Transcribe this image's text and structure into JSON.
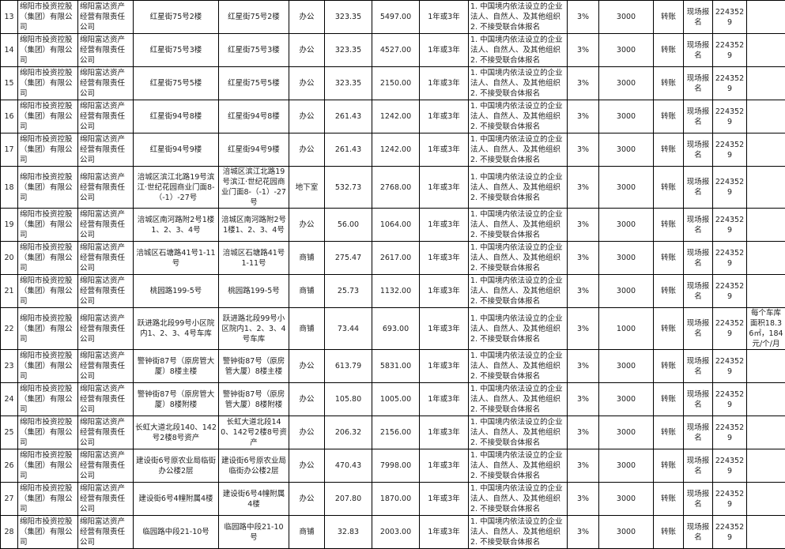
{
  "common": {
    "owner": "绵阳市投资控股（集团）有限公司",
    "operator": "绵阳富达资产经营有限责任公司",
    "term": "1年或3年",
    "requirement_1": "1. 中国境内依法设立的企业法人、自然人、及其他组织",
    "requirement_2": "2. 不接受联合体报名",
    "rate": "3%",
    "payment": "转账",
    "signup": "现场报名",
    "phone": "2243529"
  },
  "rows": [
    {
      "no": "13",
      "addr1": "红星街75号2楼",
      "addr2": "红星街75号2楼",
      "use": "办公",
      "area": "323.35",
      "price": "5497.00",
      "deposit": "3000",
      "note": ""
    },
    {
      "no": "14",
      "addr1": "红星街75号3楼",
      "addr2": "红星街75号3楼",
      "use": "办公",
      "area": "323.35",
      "price": "4527.00",
      "deposit": "3000",
      "note": ""
    },
    {
      "no": "15",
      "addr1": "红星街75号5楼",
      "addr2": "红星街75号5楼",
      "use": "办公",
      "area": "323.35",
      "price": "2150.00",
      "deposit": "3000",
      "note": ""
    },
    {
      "no": "16",
      "addr1": "红星街94号8楼",
      "addr2": "红星街94号8楼",
      "use": "办公",
      "area": "261.43",
      "price": "1242.00",
      "deposit": "3000",
      "note": ""
    },
    {
      "no": "17",
      "addr1": "红星街94号9楼",
      "addr2": "红星街94号9楼",
      "use": "办公",
      "area": "261.43",
      "price": "1242.00",
      "deposit": "3000",
      "note": ""
    },
    {
      "no": "18",
      "addr1": "涪城区滨江北路19号滨江·世纪花园商业门面8-（-1）-27号",
      "addr2": "涪城区滨江北路19号滨江·世纪花园商业门面8-（-1）-27号",
      "use": "地下室",
      "area": "532.73",
      "price": "2768.00",
      "deposit": "3000",
      "note": ""
    },
    {
      "no": "19",
      "addr1": "涪城区南河路附2号1楼1、2、3、4号",
      "addr2": "涪城区南河路附2号1楼1、2、3、4号",
      "use": "办公",
      "area": "56.00",
      "price": "1064.00",
      "deposit": "3000",
      "note": ""
    },
    {
      "no": "20",
      "addr1": "涪城区石塘路41号1-11号",
      "addr2": "涪城区石塘路41号1-11号",
      "use": "商铺",
      "area": "275.47",
      "price": "2617.00",
      "deposit": "3000",
      "note": ""
    },
    {
      "no": "21",
      "addr1": "桃园路199-5号",
      "addr2": "桃园路199-5号",
      "use": "商铺",
      "area": "25.73",
      "price": "1132.00",
      "deposit": "3000",
      "note": ""
    },
    {
      "no": "22",
      "addr1": "跃进路北段99号小区院内1、2、3、4号车库",
      "addr2": "跃进路北段99号小区院内1、2、3、4号车库",
      "use": "商铺",
      "area": "73.44",
      "price": "693.00",
      "deposit": "1000",
      "note": "每个车库面积18.36㎡，184元/个/月"
    },
    {
      "no": "23",
      "addr1": "警钟街87号（原房管大厦）8楼主楼",
      "addr2": "警钟街87号（原房管大厦）8楼主楼",
      "use": "办公",
      "area": "613.79",
      "price": "5831.00",
      "deposit": "3000",
      "note": ""
    },
    {
      "no": "24",
      "addr1": "警钟街87号（原房管大厦）8楼附楼",
      "addr2": "警钟街87号（原房管大厦）8楼附楼",
      "use": "办公",
      "area": "105.80",
      "price": "1005.00",
      "deposit": "3000",
      "note": ""
    },
    {
      "no": "25",
      "addr1": "长虹大道北段140、142号2楼8号资产",
      "addr2": "长虹大道北段140、142号2楼8号资产",
      "use": "办公",
      "area": "206.32",
      "price": "2156.00",
      "deposit": "3000",
      "note": ""
    },
    {
      "no": "26",
      "addr1": "建设街6号原农业局临街办公楼2层",
      "addr2": "建设街6号原农业局临街办公楼2层",
      "use": "办公",
      "area": "470.43",
      "price": "7998.00",
      "deposit": "3000",
      "note": ""
    },
    {
      "no": "27",
      "addr1": "建设街6号4幢附属4楼",
      "addr2": "建设街6号4幢附属4楼",
      "use": "办公",
      "area": "207.80",
      "price": "1870.00",
      "deposit": "3000",
      "note": ""
    },
    {
      "no": "28",
      "addr1": "临园路中段21-10号",
      "addr2": "临园路中段21-10号",
      "use": "商铺",
      "area": "32.83",
      "price": "2003.00",
      "deposit": "3000",
      "note": ""
    }
  ]
}
